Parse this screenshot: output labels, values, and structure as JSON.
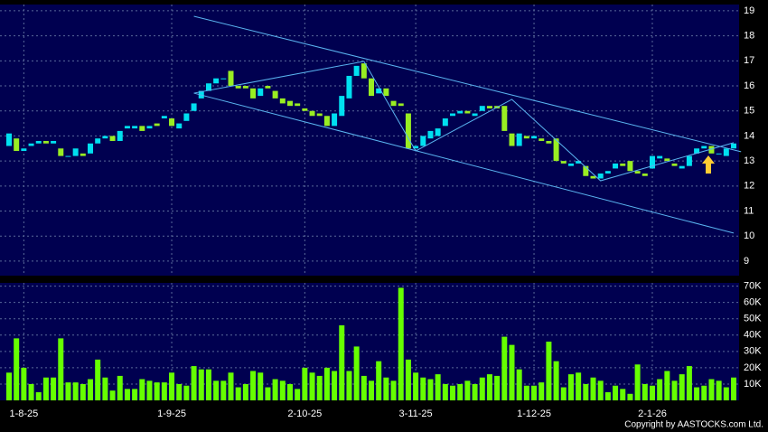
{
  "chart_data": {
    "type": "candlestick",
    "categories": [
      null,
      null,
      "1-8-25",
      null,
      null,
      null,
      null,
      null,
      null,
      null,
      null,
      null,
      null,
      null,
      null,
      null,
      null,
      null,
      null,
      null,
      null,
      null,
      "1-9-25",
      null,
      null,
      null,
      null,
      null,
      null,
      null,
      null,
      null,
      null,
      null,
      null,
      null,
      null,
      null,
      null,
      null,
      "2-10-25",
      null,
      null,
      null,
      null,
      null,
      null,
      null,
      null,
      null,
      null,
      null,
      null,
      null,
      null,
      "3-11-25",
      null,
      null,
      null,
      null,
      null,
      null,
      null,
      null,
      null,
      null,
      null,
      null,
      null,
      null,
      null,
      "1-12-25",
      null,
      null,
      null,
      null,
      null,
      null,
      null,
      null,
      null,
      null,
      null,
      null,
      null,
      null,
      null,
      "2-1-26",
      null,
      null,
      null,
      null,
      null,
      null,
      null,
      null,
      null,
      null,
      null
    ],
    "open": [
      13.6,
      13.9,
      13.4,
      13.6,
      13.7,
      13.8,
      13.7,
      13.5,
      13.2,
      13.2,
      13.3,
      13.3,
      13.7,
      13.9,
      14.0,
      13.8,
      14.3,
      14.3,
      14.4,
      14.3,
      14.5,
      14.7,
      14.7,
      14.3,
      14.6,
      15.0,
      15.5,
      15.8,
      16.1,
      16.3,
      16.6,
      16.0,
      16.0,
      15.9,
      15.6,
      16.0,
      15.8,
      15.5,
      15.4,
      15.3,
      15.1,
      15.0,
      14.9,
      14.8,
      14.4,
      14.8,
      15.5,
      16.4,
      16.9,
      16.3,
      15.7,
      15.9,
      15.4,
      15.3,
      14.9,
      13.5,
      13.6,
      13.9,
      14.0,
      14.4,
      14.8,
      14.9,
      15.0,
      14.8,
      15.0,
      15.2,
      15.2,
      15.2,
      14.1,
      13.6,
      14.0,
      13.9,
      13.9,
      13.8,
      13.9,
      13.0,
      12.8,
      12.9,
      12.8,
      12.4,
      12.3,
      12.5,
      12.7,
      12.9,
      13.0,
      12.6,
      12.5,
      12.7,
      13.1,
      13.1,
      12.9,
      12.7,
      12.8,
      13.3,
      13.5,
      13.6,
      13.3,
      13.2,
      13.5
    ],
    "close": [
      14.1,
      13.4,
      13.5,
      13.7,
      13.8,
      13.7,
      13.8,
      13.2,
      13.2,
      13.5,
      13.2,
      13.7,
      13.9,
      14.0,
      13.8,
      14.2,
      14.4,
      14.4,
      14.2,
      14.4,
      14.4,
      14.8,
      14.4,
      14.5,
      14.9,
      15.3,
      15.8,
      16.1,
      16.3,
      16.3,
      16.0,
      15.9,
      15.9,
      15.5,
      15.9,
      15.9,
      15.5,
      15.3,
      15.2,
      15.2,
      15.0,
      14.8,
      14.8,
      14.4,
      14.9,
      15.6,
      16.4,
      16.8,
      16.3,
      15.6,
      15.9,
      15.6,
      15.2,
      15.2,
      13.5,
      13.6,
      14.0,
      14.2,
      14.3,
      14.7,
      14.9,
      15.0,
      14.9,
      14.9,
      15.2,
      15.1,
      15.1,
      14.2,
      13.6,
      14.1,
      13.9,
      14.0,
      13.8,
      13.7,
      13.0,
      12.9,
      12.9,
      13.0,
      12.4,
      12.3,
      12.5,
      12.6,
      12.9,
      12.8,
      12.6,
      12.5,
      12.4,
      13.2,
      13.2,
      13.0,
      12.8,
      12.8,
      13.2,
      13.5,
      13.6,
      13.3,
      13.3,
      13.5,
      13.7
    ],
    "volume": [
      17000,
      38000,
      20000,
      10000,
      5000,
      14000,
      14000,
      38000,
      11000,
      11000,
      10000,
      13000,
      25000,
      14000,
      6000,
      15000,
      7000,
      7000,
      13000,
      12000,
      11000,
      11000,
      17000,
      10000,
      9000,
      21000,
      19000,
      19000,
      12000,
      12000,
      17000,
      8000,
      10000,
      18000,
      17000,
      8000,
      13000,
      12000,
      10000,
      7000,
      20000,
      17000,
      15000,
      20000,
      18000,
      46000,
      18000,
      33000,
      15000,
      12000,
      24000,
      14000,
      12000,
      69000,
      25000,
      17000,
      14000,
      13000,
      16000,
      10000,
      9000,
      10000,
      12000,
      10000,
      14000,
      16000,
      15000,
      39000,
      34000,
      19000,
      9000,
      9000,
      11000,
      36000,
      24000,
      8000,
      16000,
      17000,
      10000,
      14000,
      12000,
      5000,
      9000,
      7000,
      4000,
      22000,
      10000,
      9000,
      13000,
      18000,
      12000,
      16000,
      21000,
      8000,
      9000,
      13000,
      12000,
      8000,
      14000
    ],
    "up_color": "#00e0f0",
    "down_color": "#99ee22",
    "volume_color": "#66ff00",
    "line_color": "#5ab4f0",
    "ylim": [
      8.42,
      19.25
    ],
    "yticks": [
      9,
      10,
      11,
      12,
      13,
      14,
      15,
      16,
      17,
      18,
      19
    ],
    "volume_ylim": [
      0,
      72000
    ],
    "volume_yticks": [
      {
        "value": 10000,
        "label": "10K"
      },
      {
        "value": 20000,
        "label": "20K"
      },
      {
        "value": 30000,
        "label": "30K"
      },
      {
        "value": 40000,
        "label": "40K"
      },
      {
        "value": 50000,
        "label": "50K"
      },
      {
        "value": 60000,
        "label": "60K"
      },
      {
        "value": 70000,
        "label": "70K"
      }
    ],
    "trendlines": [
      {
        "x": [
          25,
          99
        ],
        "y": [
          18.78,
          13.37
        ]
      },
      {
        "x": [
          25,
          98
        ],
        "y": [
          15.71,
          10.12
        ]
      },
      {
        "x": [
          25,
          48,
          55,
          68,
          80,
          98
        ],
        "y": [
          15.71,
          16.98,
          13.4,
          15.46,
          12.21,
          13.73
        ]
      }
    ],
    "grid": true,
    "copyright": "Copyright by AASTOCKS.com Ltd."
  }
}
